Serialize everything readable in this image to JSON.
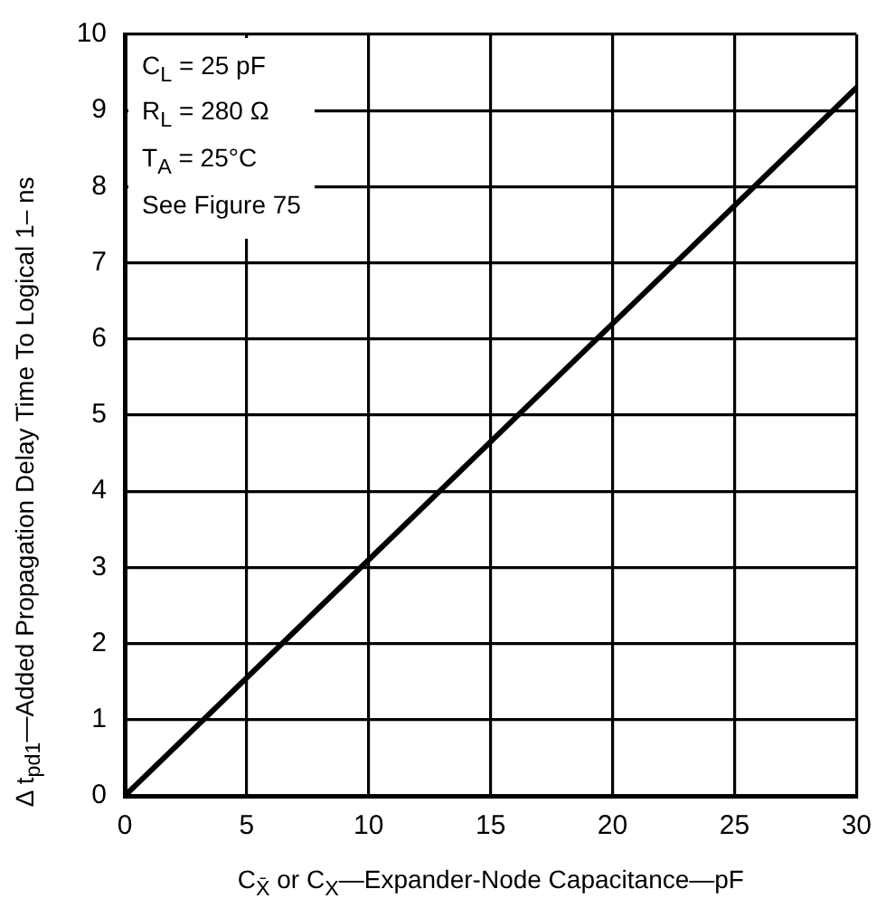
{
  "chart_data": {
    "type": "line",
    "xlabel": "C$_{X̄}$ or C$_{X}$—Expander-Node Capacitance—pF",
    "ylabel": "Δ t$_{pd1}$—Added Propagation Delay Time To Logical 1– ns",
    "annotations": [
      "C$_{L}$ = 25 pF",
      "R$_{L}$ = 280 Ω",
      "T$_{A}$ = 25°C",
      "See Figure 75"
    ],
    "x": [
      0,
      10,
      20,
      30
    ],
    "series": [
      {
        "color": "#000000",
        "values": [
          0,
          3.1,
          6.2,
          9.3
        ]
      }
    ],
    "xlim": [
      0,
      30
    ],
    "xticks": [
      0,
      5,
      10,
      15,
      20,
      25,
      30
    ],
    "ylim": [
      0,
      10
    ],
    "yticks": [
      0,
      1,
      2,
      3,
      4,
      5,
      6,
      7,
      8,
      9,
      10
    ],
    "grid": true,
    "line_style": "solid"
  }
}
